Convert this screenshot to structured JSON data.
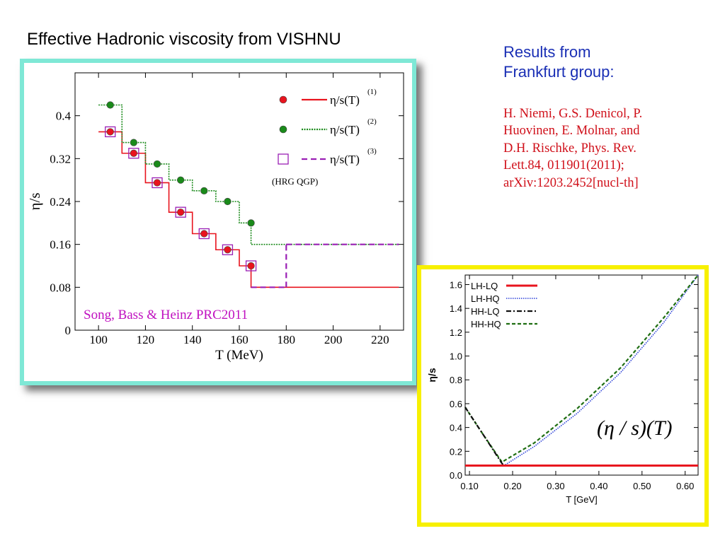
{
  "slide": {
    "title": "Effective Hadronic viscosity from VISHNU",
    "heading_line1": "Results from",
    "heading_line2": "Frankfurt group:",
    "reference_lines": [
      "H. Niemi, G.S. Denicol, P.",
      "Huovinen, E. Molnar, and",
      "D.H. Rischke, Phys. Rev.",
      "Lett.84, 011901(2011);",
      "arXiv:1203.2452[nucl-th]"
    ]
  },
  "chart_data": [
    {
      "type": "line",
      "xlabel": "T (MeV)",
      "ylabel": "η/s",
      "xlim": [
        90,
        230
      ],
      "ylim": [
        0,
        0.48
      ],
      "x_ticks": [
        100,
        120,
        140,
        160,
        180,
        200,
        220
      ],
      "y_ticks": [
        0,
        0.08,
        0.16,
        0.24,
        0.32,
        0.4
      ],
      "y_tick_labels": [
        "0",
        "0.08",
        "0.16",
        "0.24",
        "0.32",
        "0.4"
      ],
      "annotation": "Song, Bass & Heinz PRC2011",
      "legend_note": "(HRG  QGP)",
      "legend_position": "top-right",
      "series": [
        {
          "name": "η/s(T)",
          "superscript": "(1)",
          "color": "#e8141e",
          "style": "solid-step",
          "step_edges": [
            100,
            110,
            120,
            130,
            140,
            150,
            160,
            165,
            228
          ],
          "step_values": [
            0.37,
            0.33,
            0.275,
            0.22,
            0.18,
            0.15,
            0.12,
            0.08
          ],
          "markers_x": [
            105,
            115,
            125,
            135,
            145,
            155,
            165
          ],
          "markers_y": [
            0.37,
            0.33,
            0.275,
            0.22,
            0.18,
            0.15,
            0.12
          ],
          "marker": "red-filled-circle"
        },
        {
          "name": "η/s(T)",
          "superscript": "(2)",
          "color": "#1a8a1a",
          "style": "dotted-step",
          "step_edges": [
            100,
            110,
            120,
            130,
            140,
            150,
            160,
            165,
            228
          ],
          "step_values": [
            0.42,
            0.35,
            0.31,
            0.28,
            0.26,
            0.24,
            0.2,
            0.16
          ],
          "markers_x": [
            105,
            115,
            125,
            135,
            145,
            155,
            165
          ],
          "markers_y": [
            0.42,
            0.35,
            0.31,
            0.28,
            0.26,
            0.24,
            0.2
          ],
          "marker": "green-filled-circle"
        },
        {
          "name": "η/s(T)",
          "superscript": "(3)",
          "color": "#9a1fb5",
          "style": "dashed-step",
          "segments": [
            {
              "x": [
                165,
                180
              ],
              "y": [
                0.08,
                0.08
              ]
            },
            {
              "x": [
                180,
                180
              ],
              "y": [
                0.08,
                0.16
              ]
            },
            {
              "x": [
                180,
                228
              ],
              "y": [
                0.16,
                0.16
              ]
            }
          ],
          "markers_x": [
            105,
            115,
            125,
            135,
            145,
            155,
            165
          ],
          "markers_y": [
            0.37,
            0.33,
            0.275,
            0.22,
            0.18,
            0.15,
            0.12
          ],
          "marker": "purple-open-square"
        }
      ]
    },
    {
      "type": "line",
      "xlabel": "T [GeV]",
      "ylabel": "η/s",
      "xlim": [
        0.09,
        0.63
      ],
      "ylim": [
        0,
        1.68
      ],
      "x_ticks": [
        0.1,
        0.2,
        0.3,
        0.4,
        0.5,
        0.6
      ],
      "x_tick_labels": [
        "0.10",
        "0.20",
        "0.30",
        "0.40",
        "0.50",
        "0.60"
      ],
      "y_ticks": [
        0,
        0.2,
        0.4,
        0.6,
        0.8,
        1.0,
        1.2,
        1.4,
        1.6
      ],
      "y_tick_labels": [
        "0.0",
        "0.2",
        "0.4",
        "0.6",
        "0.8",
        "1.0",
        "1.2",
        "1.4",
        "1.6"
      ],
      "annotation": "(η / s)(T)",
      "legend_position": "top-left",
      "series": [
        {
          "name": "LH-LQ",
          "color": "#e8141e",
          "style": "solid",
          "x": [
            0.09,
            0.63
          ],
          "y": [
            0.08,
            0.08
          ]
        },
        {
          "name": "LH-HQ",
          "color": "#2a3fd8",
          "style": "dotted",
          "x": [
            0.09,
            0.15,
            0.18,
            0.25,
            0.35,
            0.45,
            0.55,
            0.63
          ],
          "y": [
            0.08,
            0.08,
            0.08,
            0.24,
            0.52,
            0.86,
            1.28,
            1.68
          ]
        },
        {
          "name": "HH-LQ",
          "color": "#111111",
          "style": "dash-dot",
          "x": [
            0.09,
            0.13,
            0.175,
            0.18,
            0.63
          ],
          "y": [
            0.57,
            0.35,
            0.1,
            0.08,
            0.08
          ]
        },
        {
          "name": "HH-HQ",
          "color": "#1f6e12",
          "style": "dashed",
          "x": [
            0.09,
            0.13,
            0.175,
            0.18,
            0.25,
            0.35,
            0.45,
            0.55,
            0.63
          ],
          "y": [
            0.57,
            0.35,
            0.11,
            0.12,
            0.27,
            0.56,
            0.9,
            1.32,
            1.72
          ]
        }
      ]
    }
  ]
}
